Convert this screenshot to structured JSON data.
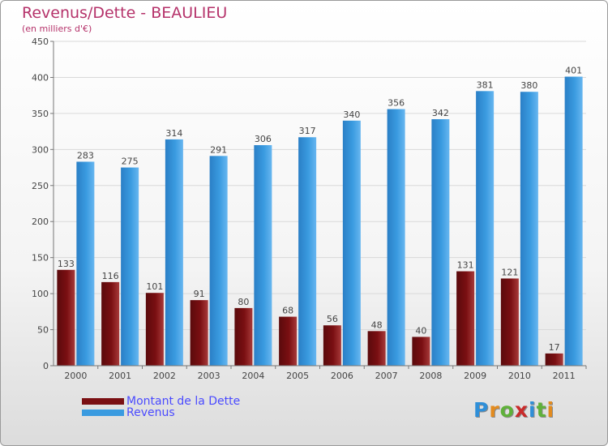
{
  "title": "Revenus/Dette - BEAULIEU",
  "subtitle": "(en milliers d'€)",
  "logo": {
    "letters": [
      "P",
      "r",
      "o",
      "x",
      "i",
      "t",
      "i"
    ]
  },
  "colors": {
    "title": "#b5326a",
    "debt": "#7a0f12",
    "revenue": "#3a9be0",
    "legend_text": "#4a4aff",
    "logo": [
      "#2f8fd8",
      "#e38b1e",
      "#5fb13a",
      "#c92b2b",
      "#2f8fd8",
      "#5fb13a",
      "#e38b1e"
    ]
  },
  "chart_data": {
    "type": "bar",
    "categories": [
      "2000",
      "2001",
      "2002",
      "2003",
      "2004",
      "2005",
      "2006",
      "2007",
      "2008",
      "2009",
      "2010",
      "2011"
    ],
    "series": [
      {
        "name": "Montant de la Dette",
        "values": [
          133,
          116,
          101,
          91,
          80,
          68,
          56,
          48,
          40,
          131,
          121,
          17
        ]
      },
      {
        "name": "Revenus",
        "values": [
          283,
          275,
          314,
          291,
          306,
          317,
          340,
          356,
          342,
          381,
          380,
          401
        ]
      }
    ],
    "ylim": [
      0,
      450
    ],
    "yticks": [
      0,
      50,
      100,
      150,
      200,
      250,
      300,
      350,
      400,
      450
    ],
    "grid": true,
    "legend_position": "bottom-left"
  }
}
